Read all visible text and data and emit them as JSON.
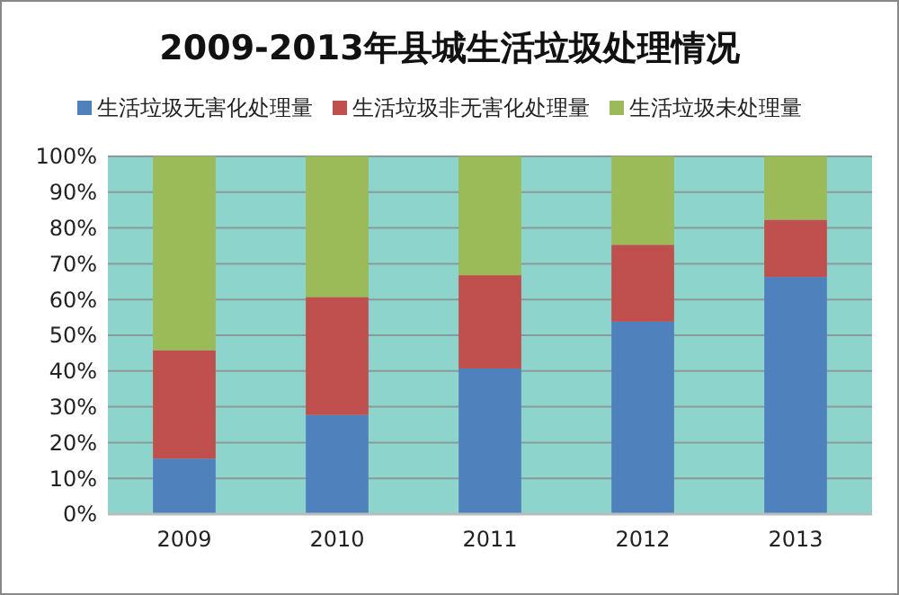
{
  "chart_data": {
    "type": "bar",
    "stacked": true,
    "title": "2009-2013年县城生活垃圾处理情况",
    "categories": [
      "2009",
      "2010",
      "2011",
      "2012",
      "2013"
    ],
    "series": [
      {
        "name": "生活垃圾无害化处理量",
        "color": "#4f81bd",
        "values": [
          15.5,
          27.7,
          40.7,
          53.8,
          66.3
        ]
      },
      {
        "name": "生活垃圾非无害化处理量",
        "color": "#c0504d",
        "values": [
          30.3,
          33.0,
          26.1,
          21.5,
          16.0
        ]
      },
      {
        "name": "生活垃圾未处理量",
        "color": "#9bbb59",
        "values": [
          54.2,
          39.3,
          33.2,
          24.7,
          17.7
        ]
      }
    ],
    "ylim": [
      0,
      100
    ],
    "yticks": [
      {
        "value": 0,
        "label": "0%"
      },
      {
        "value": 10,
        "label": "10%"
      },
      {
        "value": 20,
        "label": "20%"
      },
      {
        "value": 30,
        "label": "30%"
      },
      {
        "value": 40,
        "label": "40%"
      },
      {
        "value": 50,
        "label": "50%"
      },
      {
        "value": 60,
        "label": "60%"
      },
      {
        "value": 70,
        "label": "70%"
      },
      {
        "value": 80,
        "label": "80%"
      },
      {
        "value": 90,
        "label": "90%"
      },
      {
        "value": 100,
        "label": "100%"
      }
    ],
    "grid": "y",
    "legend": "top"
  }
}
